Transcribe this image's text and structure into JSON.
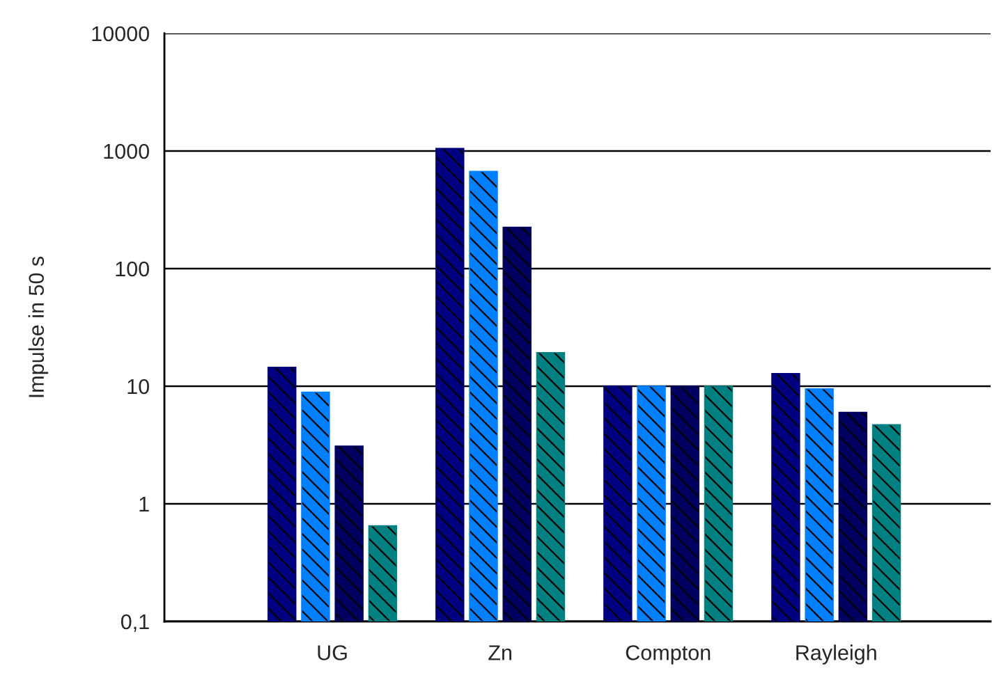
{
  "chart_data": {
    "type": "bar",
    "ylabel": "Impulse in 50 s",
    "categories": [
      "UG",
      "Zn",
      "Compton",
      "Rayleigh"
    ],
    "series": [
      {
        "color": "#000080",
        "values": [
          14.5,
          1050,
          10,
          12.8
        ]
      },
      {
        "color": "#0080ff",
        "values": [
          8.9,
          670,
          10,
          9.5
        ]
      },
      {
        "color": "#000060",
        "values": [
          3.1,
          225,
          10,
          6.0
        ]
      },
      {
        "color": "#008080",
        "values": [
          0.65,
          19.3,
          10,
          4.7
        ]
      }
    ],
    "log": "y",
    "ylim": [
      0.1,
      10000
    ],
    "yticks": [
      {
        "value": 0.1,
        "label": "0,1"
      },
      1,
      10,
      100,
      1000,
      10000
    ],
    "grid": "y",
    "legend": false
  }
}
